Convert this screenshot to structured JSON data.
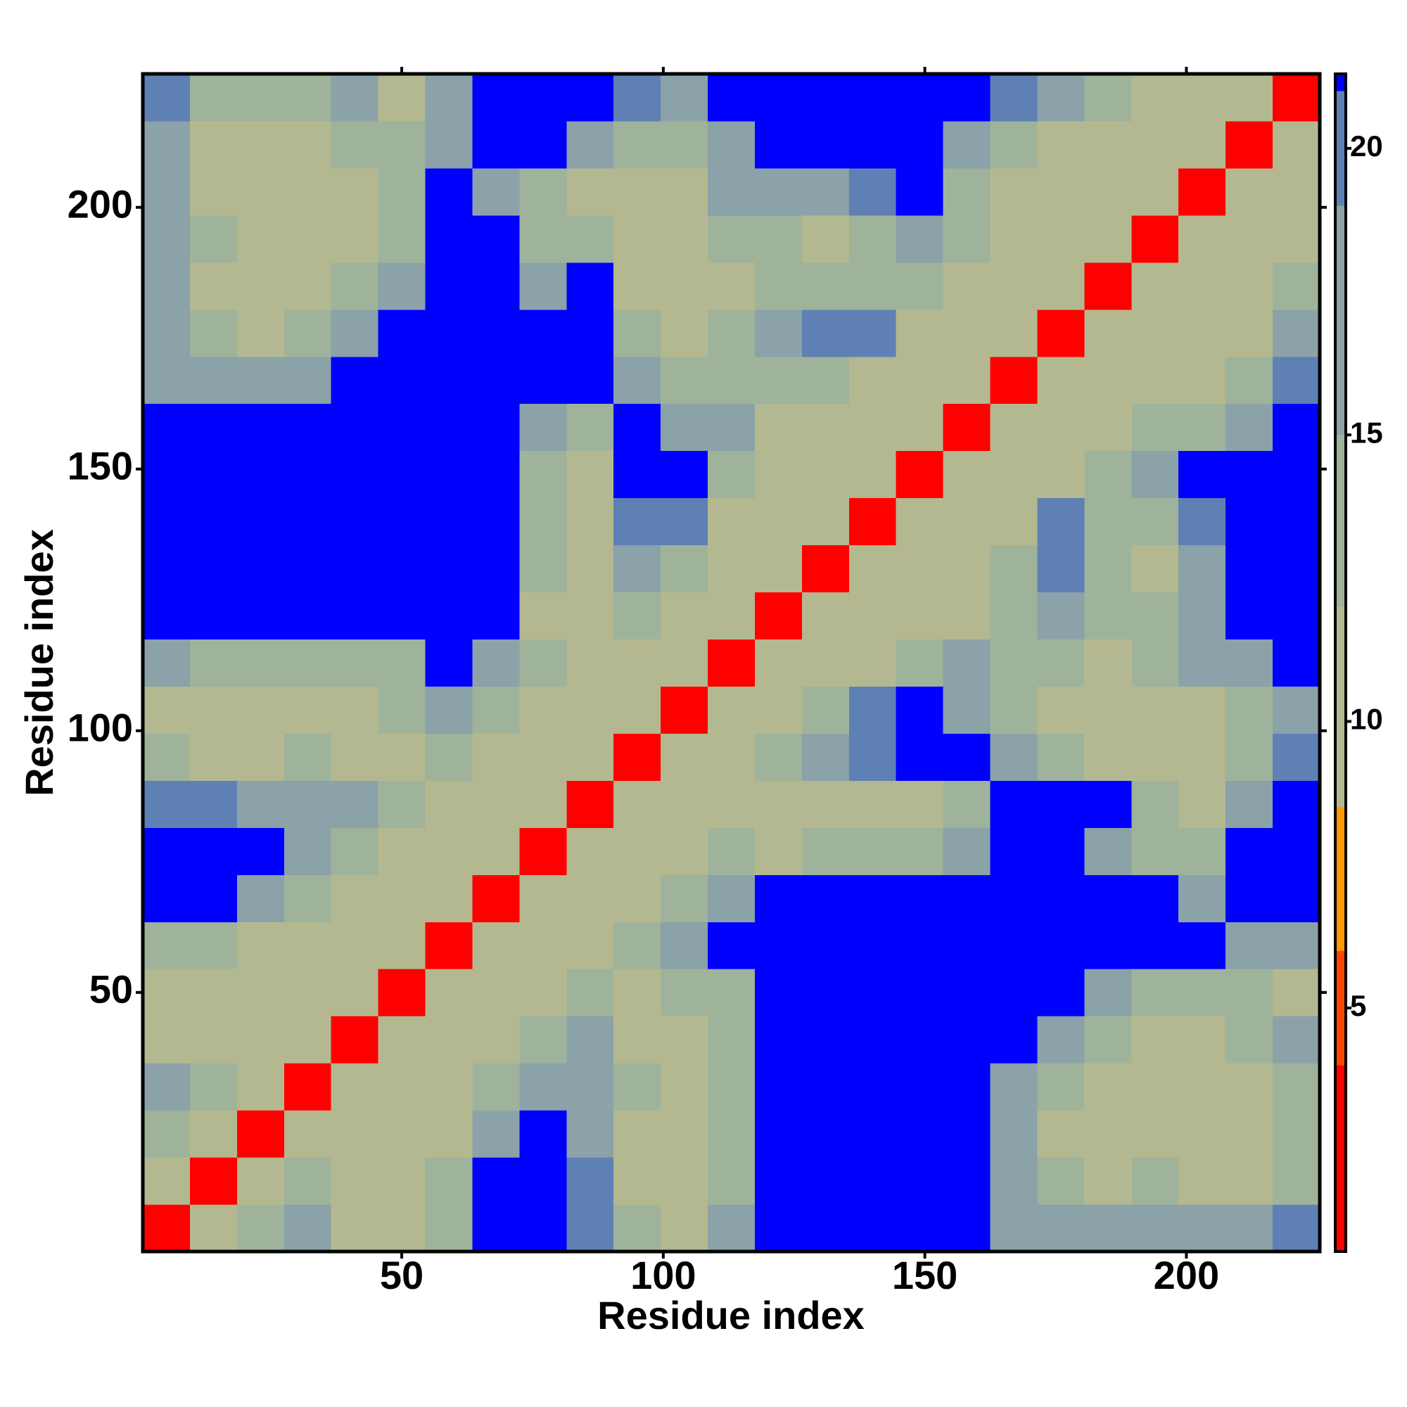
{
  "chart_data": {
    "type": "heatmap",
    "x_label": "Residue index",
    "y_label": "Residue index",
    "x_edges": [
      0.5,
      9.5,
      18.5,
      27.5,
      36.5,
      45.5,
      54.5,
      63.5,
      72.5,
      81.5,
      90.5,
      99.5,
      108.5,
      117.5,
      126.5,
      135.5,
      144.5,
      153.5,
      162.5,
      171.5,
      180.5,
      189.5,
      198.5,
      207.5,
      216.5,
      225.5
    ],
    "y_edges": [
      0.5,
      9.5,
      18.5,
      27.5,
      36.5,
      45.5,
      54.5,
      63.5,
      72.5,
      81.5,
      90.5,
      99.5,
      108.5,
      117.5,
      126.5,
      135.5,
      144.5,
      153.5,
      162.5,
      171.5,
      180.5,
      189.5,
      198.5,
      207.5,
      216.5,
      225.5
    ],
    "xlim": [
      0.5,
      225.5
    ],
    "ylim": [
      0.5,
      225.5
    ],
    "xticks": [
      50,
      100,
      150,
      200
    ],
    "yticks": [
      50,
      100,
      150,
      200
    ],
    "z": [
      [
        3,
        9,
        13,
        16,
        11,
        9,
        14,
        24,
        24,
        20,
        13,
        12,
        16,
        24,
        24,
        24,
        24,
        24,
        18,
        16,
        16,
        16,
        18,
        18,
        20
      ],
      [
        9,
        3,
        9,
        13,
        12,
        11,
        13,
        24,
        24,
        20,
        12,
        12,
        14,
        24,
        24,
        24,
        24,
        24,
        18,
        13,
        12,
        13,
        12,
        12,
        14
      ],
      [
        13,
        9,
        3,
        9,
        12,
        11,
        12,
        16,
        24,
        18,
        12,
        11,
        13,
        24,
        24,
        24,
        24,
        24,
        16,
        12,
        12,
        11,
        11,
        11,
        13
      ],
      [
        16,
        13,
        9,
        3,
        9,
        11,
        10,
        13,
        16,
        18,
        13,
        12,
        14,
        24,
        24,
        24,
        24,
        24,
        17,
        14,
        12,
        12,
        11,
        12,
        14
      ],
      [
        11,
        12,
        12,
        9,
        3,
        9,
        9,
        12,
        13,
        16,
        12,
        11,
        13,
        24,
        24,
        24,
        24,
        24,
        24,
        16,
        13,
        12,
        12,
        13,
        16
      ],
      [
        9,
        11,
        11,
        11,
        9,
        3,
        9,
        11,
        12,
        13,
        12,
        13,
        14,
        24,
        24,
        24,
        24,
        24,
        24,
        24,
        18,
        14,
        14,
        13,
        12
      ],
      [
        14,
        13,
        12,
        10,
        9,
        9,
        3,
        9,
        10,
        11,
        13,
        16,
        24,
        24,
        24,
        24,
        24,
        24,
        24,
        24,
        24,
        24,
        24,
        16,
        16
      ],
      [
        24,
        24,
        16,
        13,
        12,
        11,
        9,
        3,
        9,
        10,
        12,
        13,
        16,
        24,
        24,
        24,
        24,
        24,
        24,
        24,
        24,
        24,
        18,
        24,
        24
      ],
      [
        24,
        24,
        24,
        16,
        13,
        12,
        10,
        9,
        3,
        9,
        11,
        12,
        13,
        12,
        13,
        13,
        14,
        16,
        24,
        24,
        16,
        13,
        14,
        24,
        24
      ],
      [
        20,
        20,
        18,
        18,
        16,
        13,
        11,
        10,
        9,
        3,
        9,
        10,
        11,
        12,
        12,
        11,
        12,
        14,
        24,
        24,
        24,
        13,
        12,
        16,
        24
      ],
      [
        13,
        12,
        12,
        13,
        12,
        12,
        13,
        12,
        11,
        9,
        3,
        9,
        10,
        13,
        16,
        20,
        24,
        24,
        16,
        14,
        12,
        11,
        12,
        14,
        20
      ],
      [
        12,
        12,
        11,
        12,
        11,
        13,
        16,
        13,
        12,
        10,
        9,
        3,
        9,
        11,
        14,
        20,
        24,
        16,
        13,
        12,
        11,
        12,
        12,
        13,
        18
      ],
      [
        16,
        14,
        13,
        14,
        13,
        14,
        24,
        16,
        13,
        11,
        10,
        9,
        3,
        9,
        10,
        12,
        13,
        16,
        14,
        13,
        12,
        13,
        16,
        18,
        24
      ],
      [
        24,
        24,
        24,
        24,
        24,
        24,
        24,
        24,
        12,
        12,
        13,
        11,
        9,
        3,
        9,
        10,
        11,
        12,
        13,
        16,
        14,
        13,
        16,
        24,
        24
      ],
      [
        24,
        24,
        24,
        24,
        24,
        24,
        24,
        24,
        13,
        12,
        16,
        14,
        10,
        9,
        3,
        9,
        10,
        11,
        14,
        20,
        13,
        12,
        16,
        24,
        24
      ],
      [
        24,
        24,
        24,
        24,
        24,
        24,
        24,
        24,
        13,
        11,
        20,
        20,
        12,
        10,
        9,
        3,
        9,
        10,
        12,
        20,
        14,
        13,
        20,
        24,
        24
      ],
      [
        24,
        24,
        24,
        24,
        24,
        24,
        24,
        24,
        14,
        12,
        24,
        24,
        13,
        11,
        10,
        9,
        3,
        9,
        10,
        12,
        14,
        16,
        24,
        24,
        24
      ],
      [
        24,
        24,
        24,
        24,
        24,
        24,
        24,
        24,
        16,
        14,
        24,
        16,
        16,
        12,
        11,
        10,
        9,
        3,
        9,
        10,
        12,
        13,
        14,
        16,
        24
      ],
      [
        18,
        18,
        16,
        17,
        24,
        24,
        24,
        24,
        24,
        24,
        16,
        13,
        14,
        13,
        14,
        12,
        10,
        9,
        3,
        9,
        10,
        11,
        12,
        14,
        20
      ],
      [
        16,
        13,
        12,
        14,
        16,
        24,
        24,
        24,
        24,
        24,
        14,
        12,
        13,
        16,
        20,
        20,
        12,
        10,
        9,
        3,
        9,
        10,
        11,
        12,
        16
      ],
      [
        16,
        12,
        12,
        12,
        13,
        18,
        24,
        24,
        16,
        24,
        12,
        11,
        12,
        14,
        13,
        14,
        14,
        12,
        10,
        9,
        3,
        9,
        10,
        11,
        13
      ],
      [
        16,
        13,
        11,
        12,
        12,
        14,
        24,
        24,
        13,
        13,
        11,
        12,
        13,
        13,
        12,
        13,
        16,
        13,
        11,
        10,
        9,
        3,
        9,
        10,
        12
      ],
      [
        18,
        12,
        11,
        11,
        12,
        14,
        24,
        18,
        14,
        12,
        12,
        12,
        16,
        16,
        16,
        20,
        24,
        14,
        12,
        11,
        10,
        9,
        3,
        9,
        10
      ],
      [
        18,
        12,
        11,
        12,
        13,
        13,
        16,
        24,
        24,
        16,
        14,
        13,
        18,
        24,
        24,
        24,
        24,
        16,
        14,
        12,
        11,
        10,
        9,
        3,
        9
      ],
      [
        20,
        14,
        13,
        14,
        16,
        12,
        16,
        24,
        24,
        24,
        20,
        18,
        24,
        24,
        24,
        24,
        24,
        24,
        20,
        16,
        13,
        12,
        10,
        9,
        3
      ]
    ],
    "colorbar": {
      "lim": [
        0.75,
        21.3
      ],
      "ticks": [
        5,
        10,
        15,
        20
      ],
      "steps": [
        {
          "to": 4,
          "color": "#ff0000"
        },
        {
          "to": 6,
          "color": "#ff4500"
        },
        {
          "to": 8.5,
          "color": "#ff9900"
        },
        {
          "to": 12,
          "color": "#b4b890"
        },
        {
          "to": 15,
          "color": "#9fb39b"
        },
        {
          "to": 19,
          "color": "#8aa2a8"
        },
        {
          "to": 21,
          "color": "#5f80b4"
        },
        {
          "color": "#0000ff"
        }
      ]
    }
  }
}
